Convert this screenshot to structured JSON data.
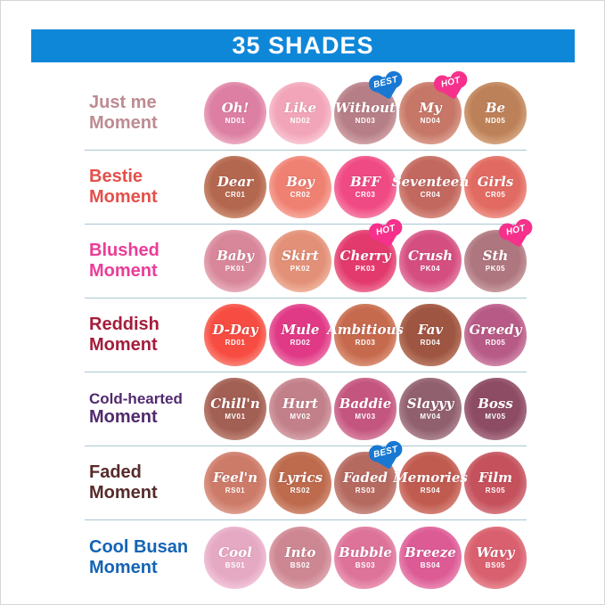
{
  "header": {
    "title": "35 SHADES",
    "bg_color": "#0e87d9"
  },
  "badge_types": {
    "best": {
      "label": "BEST",
      "color": "#1878d2"
    },
    "hot": {
      "label": "HOT",
      "color": "#f5318c"
    }
  },
  "divider_color": "#a9c6d2",
  "rows": [
    {
      "label_line1": "Just me",
      "label_line2": "Moment",
      "label_color": "#bd8b92",
      "shades": [
        {
          "name": "Oh!",
          "code": "ND01",
          "core": "#dc7fa2",
          "edge": "#efb3c6",
          "badge": ""
        },
        {
          "name": "Like",
          "code": "ND02",
          "core": "#f2a5b8",
          "edge": "#f9cdd8",
          "badge": ""
        },
        {
          "name": "Without",
          "code": "ND03",
          "core": "#b67f87",
          "edge": "#d2a7ab",
          "badge": "best"
        },
        {
          "name": "My",
          "code": "ND04",
          "core": "#c67767",
          "edge": "#dda393",
          "badge": "hot"
        },
        {
          "name": "Be",
          "code": "ND05",
          "core": "#bd8159",
          "edge": "#d8ab86",
          "badge": ""
        }
      ]
    },
    {
      "label_line1": "Bestie",
      "label_line2": "Moment",
      "label_color": "#e4504b",
      "shades": [
        {
          "name": "Dear",
          "code": "CR01",
          "core": "#b4674f",
          "edge": "#cf9379",
          "badge": ""
        },
        {
          "name": "Boy",
          "code": "CR02",
          "core": "#ef8173",
          "edge": "#f7b0a3",
          "badge": ""
        },
        {
          "name": "BFF",
          "code": "CR03",
          "core": "#f04a84",
          "edge": "#f787ac",
          "badge": ""
        },
        {
          "name": "Seventeen",
          "code": "CR04",
          "core": "#c2685f",
          "edge": "#d99287",
          "badge": ""
        },
        {
          "name": "Girls",
          "code": "CR05",
          "core": "#e16b62",
          "edge": "#f09c92",
          "badge": ""
        }
      ]
    },
    {
      "label_line1": "Blushed",
      "label_line2": "Moment",
      "label_color": "#ea3d98",
      "shades": [
        {
          "name": "Baby",
          "code": "PK01",
          "core": "#d8879a",
          "edge": "#e9b2bf",
          "badge": ""
        },
        {
          "name": "Skirt",
          "code": "PK02",
          "core": "#e29077",
          "edge": "#f1b9a3",
          "badge": ""
        },
        {
          "name": "Cherry",
          "code": "PK03",
          "core": "#e23a6d",
          "edge": "#ef7a9b",
          "badge": "hot"
        },
        {
          "name": "Crush",
          "code": "PK04",
          "core": "#d44f80",
          "edge": "#e687aa",
          "badge": ""
        },
        {
          "name": "Sth",
          "code": "PK05",
          "core": "#ae767e",
          "edge": "#cca0a6",
          "badge": "hot"
        }
      ]
    },
    {
      "label_line1": "Reddish",
      "label_line2": "Moment",
      "label_color": "#a51c3c",
      "shades": [
        {
          "name": "D-Day",
          "code": "RD01",
          "core": "#f74c41",
          "edge": "#fb8a7e",
          "badge": ""
        },
        {
          "name": "Mule",
          "code": "RD02",
          "core": "#e03a86",
          "edge": "#ee7cae",
          "badge": ""
        },
        {
          "name": "Ambitious",
          "code": "RD03",
          "core": "#c66a4e",
          "edge": "#dd977c",
          "badge": ""
        },
        {
          "name": "Fav",
          "code": "RD04",
          "core": "#9e5541",
          "edge": "#bf8068",
          "badge": ""
        },
        {
          "name": "Greedy",
          "code": "RD05",
          "core": "#b75a86",
          "edge": "#d38cab",
          "badge": ""
        }
      ]
    },
    {
      "label_line1": "Cold-hearted",
      "label_line2": "Moment",
      "label_color": "#502a6e",
      "shades": [
        {
          "name": "Chill'n",
          "code": "MV01",
          "core": "#a25f53",
          "edge": "#c08a7c",
          "badge": ""
        },
        {
          "name": "Hurt",
          "code": "MV02",
          "core": "#c2808a",
          "edge": "#d9a8ae",
          "badge": ""
        },
        {
          "name": "Baddie",
          "code": "MV03",
          "core": "#c4557f",
          "edge": "#da88a5",
          "badge": ""
        },
        {
          "name": "Slayyy",
          "code": "MV04",
          "core": "#91606f",
          "edge": "#b18a95",
          "badge": ""
        },
        {
          "name": "Boss",
          "code": "MV05",
          "core": "#8d4c64",
          "edge": "#ae7a8c",
          "badge": ""
        }
      ]
    },
    {
      "label_line1": "Faded",
      "label_line2": "Moment",
      "label_color": "#572b2b",
      "shades": [
        {
          "name": "Feel'n",
          "code": "RS01",
          "core": "#cd7b69",
          "edge": "#e0a393",
          "badge": ""
        },
        {
          "name": "Lyrics",
          "code": "RS02",
          "core": "#bd6a4d",
          "edge": "#d4937a",
          "badge": ""
        },
        {
          "name": "Faded",
          "code": "RS03",
          "core": "#b56a60",
          "edge": "#cd948b",
          "badge": "best"
        },
        {
          "name": "Memories",
          "code": "RS04",
          "core": "#c05b50",
          "edge": "#d8887e",
          "badge": ""
        },
        {
          "name": "Film",
          "code": "RS05",
          "core": "#c4515c",
          "edge": "#d9828a",
          "badge": ""
        }
      ]
    },
    {
      "label_line1": "Cool Busan",
      "label_line2": "Moment",
      "label_color": "#1464b4",
      "shades": [
        {
          "name": "Cool",
          "code": "BS01",
          "core": "#e6a9c4",
          "edge": "#f2cadd",
          "badge": ""
        },
        {
          "name": "Into",
          "code": "BS02",
          "core": "#cd8793",
          "edge": "#e0adb5",
          "badge": ""
        },
        {
          "name": "Bubble",
          "code": "BS03",
          "core": "#dd7399",
          "edge": "#ec9fba",
          "badge": ""
        },
        {
          "name": "Breeze",
          "code": "BS04",
          "core": "#dc5b95",
          "edge": "#eb8fb7",
          "badge": ""
        },
        {
          "name": "Wavy",
          "code": "BS05",
          "core": "#d9606f",
          "edge": "#e99098",
          "badge": ""
        }
      ]
    }
  ]
}
